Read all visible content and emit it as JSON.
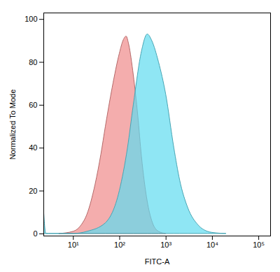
{
  "chart_data": {
    "type": "area",
    "xlabel": "FITC-A",
    "ylabel": "Normalized To Mode",
    "log": "x",
    "xlim": [
      2.3,
      180000
    ],
    "ylim": [
      -1,
      103
    ],
    "xticks": [
      {
        "value": 10,
        "label": "10¹"
      },
      {
        "value": 100,
        "label": "10²"
      },
      {
        "value": 1000,
        "label": "10³"
      },
      {
        "value": 10000,
        "label": "10⁴"
      },
      {
        "value": 100000,
        "label": "10⁵"
      }
    ],
    "yticks": [
      0,
      20,
      40,
      60,
      80,
      100
    ],
    "grid": false,
    "series": [
      {
        "color": "#f08a8a",
        "x": [
          5,
          10,
          15,
          20,
          30,
          40,
          50,
          70,
          100,
          120,
          140,
          160,
          200,
          250,
          300,
          400,
          500,
          700,
          1000
        ],
        "values": [
          0,
          1,
          4,
          9,
          23,
          37,
          50,
          68,
          84,
          90,
          92,
          88,
          74,
          55,
          36,
          15,
          6,
          1,
          0
        ]
      },
      {
        "color": "#5fdcf0",
        "x": [
          2.3,
          2.6,
          3,
          10,
          20,
          50,
          100,
          150,
          200,
          300,
          400,
          500,
          700,
          1000,
          1500,
          2000,
          3000,
          5000,
          8000,
          12000,
          20000
        ],
        "values": [
          12,
          0,
          0,
          0,
          1,
          5,
          20,
          40,
          60,
          85,
          93,
          90,
          80,
          65,
          40,
          25,
          12,
          4,
          1,
          0.3,
          0
        ]
      }
    ]
  }
}
